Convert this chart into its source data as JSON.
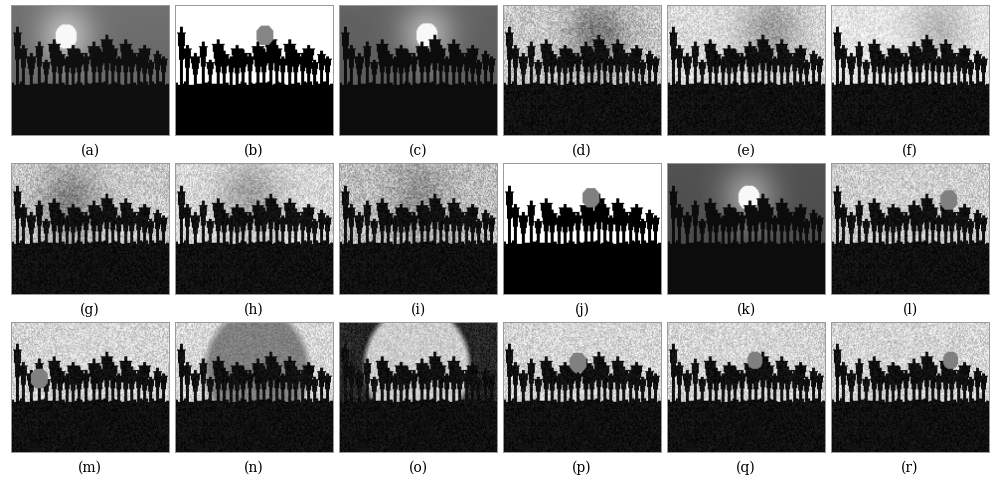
{
  "labels": [
    "(a)",
    "(b)",
    "(c)",
    "(d)",
    "(e)",
    "(f)",
    "(g)",
    "(h)",
    "(i)",
    "(j)",
    "(k)",
    "(l)",
    "(m)",
    "(n)",
    "(o)",
    "(p)",
    "(q)",
    "(r)"
  ],
  "nrows": 3,
  "ncols": 6,
  "fig_width": 10.0,
  "fig_height": 4.88,
  "label_fontsize": 10,
  "outer_bg": "#ffffff",
  "border_color": "#999999",
  "border_lw": 0.7
}
